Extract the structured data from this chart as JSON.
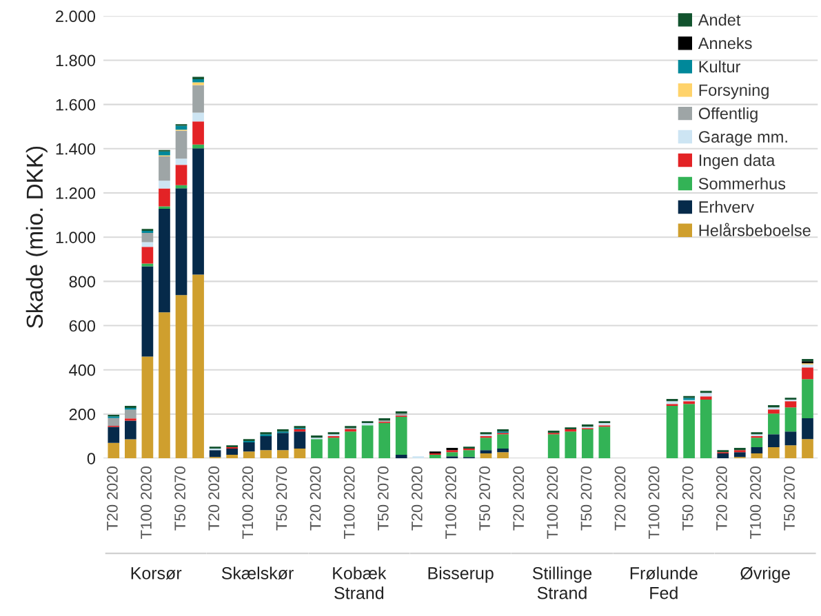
{
  "chart_data": {
    "type": "bar",
    "stacked": true,
    "ylabel": "Skade (mio. DKK)",
    "categories": [
      "T20 2020",
      null,
      "T100 2020",
      null,
      "T50 2070",
      null,
      "T20 2020",
      null,
      "T100 2020",
      null,
      "T50 2070",
      null,
      "T20 2020",
      null,
      "T100 2020",
      null,
      "T50 2070",
      null,
      "T20 2020",
      null,
      "T100 2020",
      null,
      "T50 2070",
      null,
      "T20 2020",
      null,
      "T100 2020",
      null,
      "T50 2070",
      null,
      "T20 2020",
      null,
      "T100 2020",
      null,
      "T50 2070",
      null,
      "T20 2020",
      null,
      "T100 2020",
      null,
      "T50 2070",
      null
    ],
    "annotations": [
      "Korsør",
      "Skælskør",
      "Kobæk\nStrand",
      "Bisserup",
      "Stillinge\nStrand",
      "Frølunde\nFed",
      "Øvrige"
    ],
    "series": [
      {
        "name": "Helårsbeboelse",
        "color": "#cf9f2e",
        "values": [
          70,
          86,
          460,
          660,
          738,
          831,
          6,
          16,
          31,
          37,
          37,
          44,
          0,
          0,
          0,
          0,
          0,
          0,
          0,
          0,
          0,
          0,
          22,
          28,
          0,
          0,
          0,
          0,
          0,
          0,
          0,
          0,
          0,
          0,
          0,
          0,
          0,
          6,
          22,
          50,
          59,
          87
        ]
      },
      {
        "name": "Erhverv",
        "color": "#062a4a",
        "values": [
          72,
          84,
          408,
          468,
          483,
          571,
          31,
          28,
          41,
          63,
          78,
          77,
          0,
          0,
          0,
          0,
          0,
          16,
          0,
          0,
          9,
          6,
          15,
          16,
          0,
          0,
          0,
          0,
          0,
          0,
          0,
          0,
          0,
          0,
          0,
          0,
          22,
          22,
          28,
          59,
          62,
          94
        ]
      },
      {
        "name": "Sommerhus",
        "color": "#33b356",
        "values": [
          0,
          0,
          13,
          11,
          14,
          17,
          0,
          0,
          0,
          0,
          0,
          0,
          87,
          93,
          121,
          149,
          159,
          171,
          0,
          16,
          19,
          31,
          56,
          65,
          0,
          0,
          109,
          121,
          131,
          143,
          0,
          0,
          0,
          237,
          246,
          265,
          0,
          0,
          43,
          93,
          109,
          177
        ]
      },
      {
        "name": "Ingen data",
        "color": "#e32326",
        "values": [
          5,
          10,
          75,
          81,
          92,
          104,
          0,
          6,
          0,
          0,
          0,
          10,
          0,
          7,
          10,
          0,
          6,
          6,
          0,
          6,
          9,
          7,
          7,
          6,
          0,
          0,
          6,
          10,
          6,
          6,
          0,
          0,
          0,
          9,
          12,
          15,
          6,
          9,
          7,
          19,
          28,
          53
        ]
      },
      {
        "name": "Garage mm.",
        "color": "#cde5f3",
        "values": [
          null,
          0,
          21,
          35,
          28,
          40,
          7,
          0,
          0,
          0,
          0,
          0,
          6,
          9,
          0,
          10,
          0,
          0,
          9,
          0,
          0,
          0,
          9,
          0,
          0,
          0,
          0,
          0,
          6,
          10,
          0,
          0,
          0,
          12,
          6,
          16,
          0,
          0,
          9,
          9,
          7,
          13
        ]
      },
      {
        "name": "Offentlig",
        "color": "#9ea5a6",
        "values": [
          35,
          40,
          42,
          110,
          126,
          125,
          0,
          0,
          0,
          0,
          0,
          0,
          0,
          0,
          6,
          0,
          6,
          9,
          0,
          0,
          0,
          0,
          0,
          0,
          0,
          0,
          0,
          0,
          0,
          0,
          0,
          0,
          0,
          0,
          0,
          0,
          0,
          0,
          0,
          0,
          0,
          0
        ]
      },
      {
        "name": "Forsyning",
        "color": "#ffd36b",
        "values": [
          0,
          0,
          0,
          5,
          5,
          12,
          0,
          0,
          0,
          0,
          0,
          0,
          0,
          0,
          0,
          0,
          0,
          0,
          0,
          0,
          0,
          0,
          0,
          0,
          0,
          0,
          0,
          0,
          0,
          0,
          0,
          0,
          0,
          0,
          0,
          0,
          0,
          0,
          0,
          0,
          0,
          6
        ]
      },
      {
        "name": "Kultur",
        "color": "#00889a",
        "values": [
          8,
          8,
          10,
          18,
          18,
          14,
          0,
          0,
          6,
          9,
          6,
          6,
          0,
          0,
          0,
          0,
          0,
          0,
          0,
          0,
          0,
          0,
          0,
          6,
          0,
          0,
          0,
          0,
          0,
          0,
          0,
          0,
          0,
          0,
          9,
          0,
          0,
          0,
          0,
          0,
          0,
          0
        ]
      },
      {
        "name": "Anneks",
        "color": "#000000",
        "values": [
          0,
          0,
          0,
          0,
          0,
          0,
          0,
          0,
          0,
          0,
          0,
          0,
          0,
          0,
          0,
          0,
          0,
          0,
          0,
          9,
          10,
          0,
          0,
          0,
          0,
          0,
          0,
          0,
          0,
          0,
          0,
          0,
          0,
          0,
          0,
          0,
          0,
          0,
          0,
          0,
          0,
          9
        ]
      },
      {
        "name": "Andet",
        "color": "#12532e",
        "values": [
          7,
          9,
          8,
          6,
          7,
          11,
          9,
          9,
          9,
          9,
          10,
          9,
          10,
          9,
          9,
          9,
          10,
          10,
          0,
          0,
          0,
          9,
          9,
          10,
          0,
          0,
          10,
          9,
          10,
          9,
          0,
          0,
          0,
          10,
          9,
          9,
          9,
          10,
          9,
          10,
          9,
          10
        ]
      }
    ],
    "ylim": [
      0,
      2000
    ],
    "yticks": [
      0,
      200,
      400,
      600,
      800,
      {
        "value": 1000,
        "label": "1.000"
      },
      {
        "value": 1200,
        "label": "1.200"
      },
      {
        "value": 1400,
        "label": "1.400"
      },
      {
        "value": 1600,
        "label": "1.600"
      },
      {
        "value": 1800,
        "label": "1.800"
      },
      {
        "value": 2000,
        "label": "2.000"
      }
    ],
    "grid": "y",
    "legend": "top right"
  }
}
